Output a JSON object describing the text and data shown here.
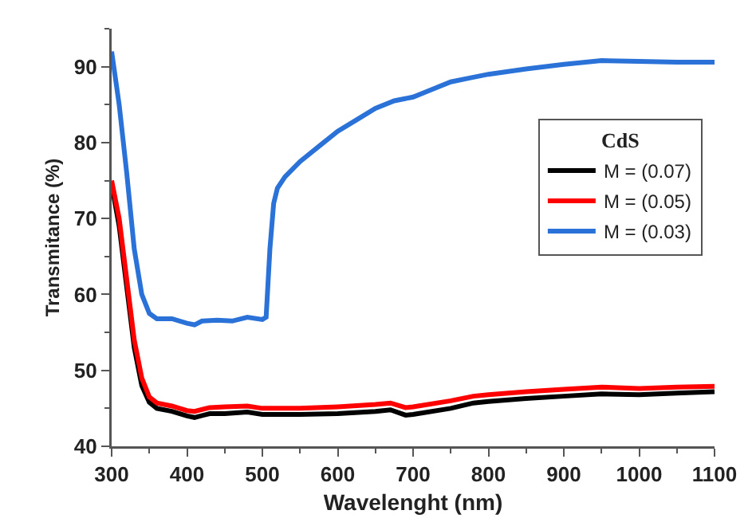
{
  "chart_data": {
    "type": "line",
    "xlabel": "Wavelenght (nm)",
    "ylabel": "Transmitance (%)",
    "legend_title": "CdS",
    "legend": "right",
    "grid": false,
    "marker": "none",
    "line_style": "solid",
    "xlim": [
      300,
      1100
    ],
    "xticks": [
      300,
      400,
      500,
      600,
      700,
      800,
      900,
      1000,
      1100
    ],
    "ylim": [
      40,
      95
    ],
    "yticks": [
      40,
      50,
      60,
      70,
      80,
      90
    ],
    "series": [
      {
        "name": "M = (0.07)",
        "color": "#000000",
        "x": [
          300,
          310,
          320,
          330,
          340,
          350,
          360,
          380,
          400,
          410,
          430,
          450,
          480,
          500,
          550,
          600,
          650,
          670,
          690,
          700,
          750,
          780,
          800,
          850,
          900,
          950,
          1000,
          1050,
          1100
        ],
        "values": [
          74.5,
          69,
          61,
          53,
          48,
          45.8,
          45,
          44.6,
          44,
          43.8,
          44.3,
          44.3,
          44.5,
          44.2,
          44.2,
          44.3,
          44.6,
          44.8,
          44.1,
          44.2,
          45,
          45.7,
          45.9,
          46.3,
          46.6,
          46.9,
          46.8,
          47,
          47.2
        ]
      },
      {
        "name": "M = (0.05)",
        "color": "#ff0000",
        "x": [
          300,
          310,
          320,
          330,
          340,
          350,
          360,
          380,
          400,
          410,
          430,
          450,
          480,
          500,
          550,
          600,
          650,
          670,
          690,
          700,
          750,
          780,
          800,
          850,
          900,
          950,
          1000,
          1050,
          1100
        ],
        "values": [
          75,
          70,
          62,
          54,
          49,
          46.5,
          45.7,
          45.3,
          44.7,
          44.6,
          45.1,
          45.2,
          45.3,
          45,
          45,
          45.2,
          45.5,
          45.7,
          45.1,
          45.2,
          46,
          46.6,
          46.8,
          47.2,
          47.5,
          47.8,
          47.6,
          47.8,
          47.9
        ]
      },
      {
        "name": "M = (0.03)",
        "color": "#2a72d8",
        "x": [
          300,
          310,
          320,
          330,
          340,
          350,
          360,
          380,
          400,
          410,
          420,
          440,
          460,
          480,
          500,
          505,
          510,
          515,
          520,
          530,
          550,
          575,
          600,
          625,
          650,
          675,
          700,
          725,
          750,
          775,
          800,
          850,
          900,
          950,
          1000,
          1050,
          1100
        ],
        "values": [
          92,
          85,
          76,
          66,
          60,
          57.5,
          56.8,
          56.8,
          56.2,
          56,
          56.5,
          56.6,
          56.5,
          57,
          56.7,
          57,
          66,
          72,
          74,
          75.5,
          77.5,
          79.5,
          81.5,
          83,
          84.5,
          85.5,
          86,
          87,
          88,
          88.5,
          89,
          89.7,
          90.3,
          90.8,
          90.7,
          90.6,
          90.6
        ]
      }
    ]
  }
}
